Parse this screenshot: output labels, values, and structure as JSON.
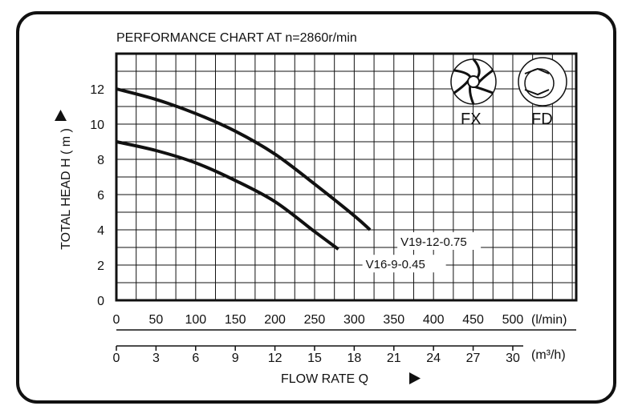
{
  "chart_data": {
    "type": "line",
    "title": "PERFORMANCE CHART AT n=2860r/min",
    "ylabel": "TOTAL HEAD H ( m )",
    "xlabel": "FLOW RATE Q",
    "x_unit": "(l/min)",
    "x2_unit": "(m³/h)",
    "xlim": [
      0,
      580
    ],
    "ylim": [
      0,
      14
    ],
    "x_ticks": [
      0,
      50,
      100,
      150,
      200,
      250,
      300,
      350,
      400,
      450,
      500
    ],
    "x2_ticks": [
      0,
      3,
      6,
      9,
      12,
      15,
      18,
      21,
      24,
      27,
      30
    ],
    "y_ticks": [
      0,
      2,
      4,
      6,
      8,
      10,
      12
    ],
    "grid": true,
    "series": [
      {
        "name": "V19-12-0.75",
        "color": "#111111",
        "x": [
          0,
          50,
          100,
          150,
          200,
          250,
          300,
          320
        ],
        "y": [
          12,
          11.4,
          10.6,
          9.6,
          8.3,
          6.6,
          4.8,
          4.0
        ]
      },
      {
        "name": "V16-9-0.45",
        "color": "#111111",
        "x": [
          0,
          50,
          100,
          150,
          200,
          250,
          280
        ],
        "y": [
          9,
          8.5,
          7.8,
          6.8,
          5.6,
          3.9,
          2.9
        ]
      }
    ]
  },
  "icons": {
    "fx": {
      "label": "FX",
      "icon": "fx-impeller-icon"
    },
    "fd": {
      "label": "FD",
      "icon": "fd-impeller-icon"
    }
  },
  "arrows": {
    "y_axis": "up-triangle-icon",
    "x_axis": "right-triangle-icon"
  }
}
